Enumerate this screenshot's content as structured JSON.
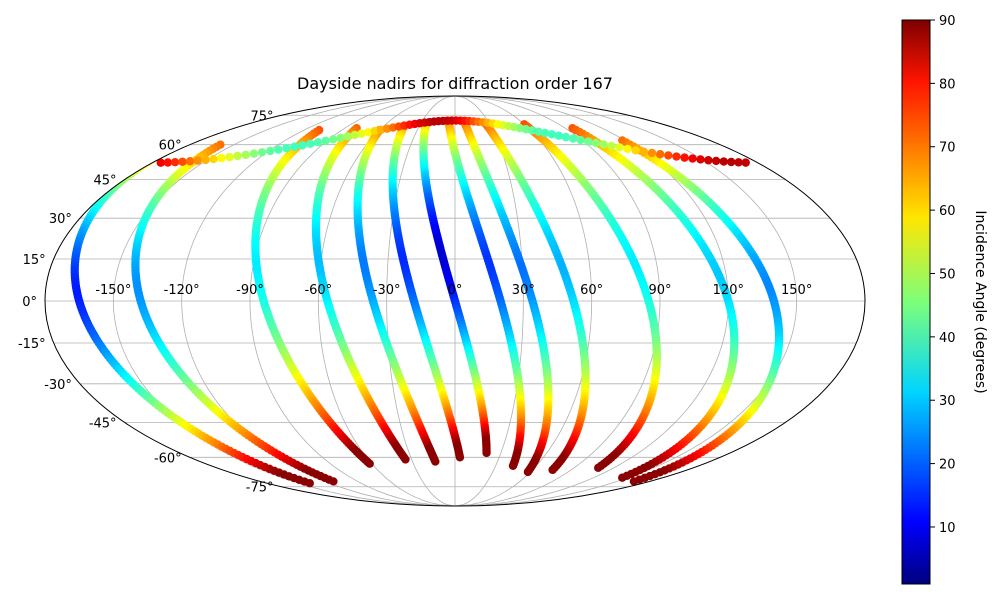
{
  "chart_data": {
    "type": "scatter",
    "projection": "mollweide",
    "title": "Dayside nadirs for diffraction order 167",
    "grid": true,
    "lon_ticks": [
      "-150°",
      "-120°",
      "-90°",
      "-60°",
      "-30°",
      "0°",
      "30°",
      "60°",
      "90°",
      "120°",
      "150°"
    ],
    "lat_ticks": [
      "75°",
      "60°",
      "45°",
      "30°",
      "15°",
      "0°",
      "-15°",
      "-30°",
      "-45°",
      "-60°",
      "-75°"
    ],
    "colorbar": {
      "label": "Incidence Angle (degrees)",
      "colormap": "jet",
      "range": [
        1,
        90
      ],
      "ticks": [
        "10",
        "20",
        "30",
        "40",
        "50",
        "60",
        "70",
        "80",
        "90"
      ]
    },
    "tracks": [
      {
        "lon_equator": -165,
        "lat_start": 58,
        "lat_end": -73,
        "max_lat": 85
      },
      {
        "lon_equator": -138,
        "lat_start": 60,
        "lat_end": -72,
        "max_lat": 84
      },
      {
        "lon_equator": -84,
        "lat_start": 67,
        "lat_end": -63,
        "max_lat": 82
      },
      {
        "lon_equator": -56,
        "lat_start": 68,
        "lat_end": -61,
        "max_lat": 82
      },
      {
        "lon_equator": -36,
        "lat_start": 67,
        "lat_end": -62,
        "max_lat": 82
      },
      {
        "lon_equator": -18,
        "lat_start": 69,
        "lat_end": -60,
        "max_lat": 82
      },
      {
        "lon_equator": 0,
        "lat_start": 70,
        "lat_end": -58,
        "max_lat": 82
      },
      {
        "lon_equator": 20,
        "lat_start": 70,
        "lat_end": -64,
        "max_lat": 82
      },
      {
        "lon_equator": 34,
        "lat_start": 70,
        "lat_end": -67,
        "max_lat": 82
      },
      {
        "lon_equator": 52,
        "lat_start": 70,
        "lat_end": -66,
        "max_lat": 82
      },
      {
        "lon_equator": 85,
        "lat_start": 70,
        "lat_end": -65,
        "max_lat": 82
      },
      {
        "lon_equator": 120,
        "lat_start": 68,
        "lat_end": -70,
        "max_lat": 84
      },
      {
        "lon_equator": 140,
        "lat_start": 62,
        "lat_end": -72,
        "max_lat": 85
      }
    ],
    "upper_band": {
      "lat": 62,
      "lon_from": -175,
      "lon_to": 175
    }
  }
}
